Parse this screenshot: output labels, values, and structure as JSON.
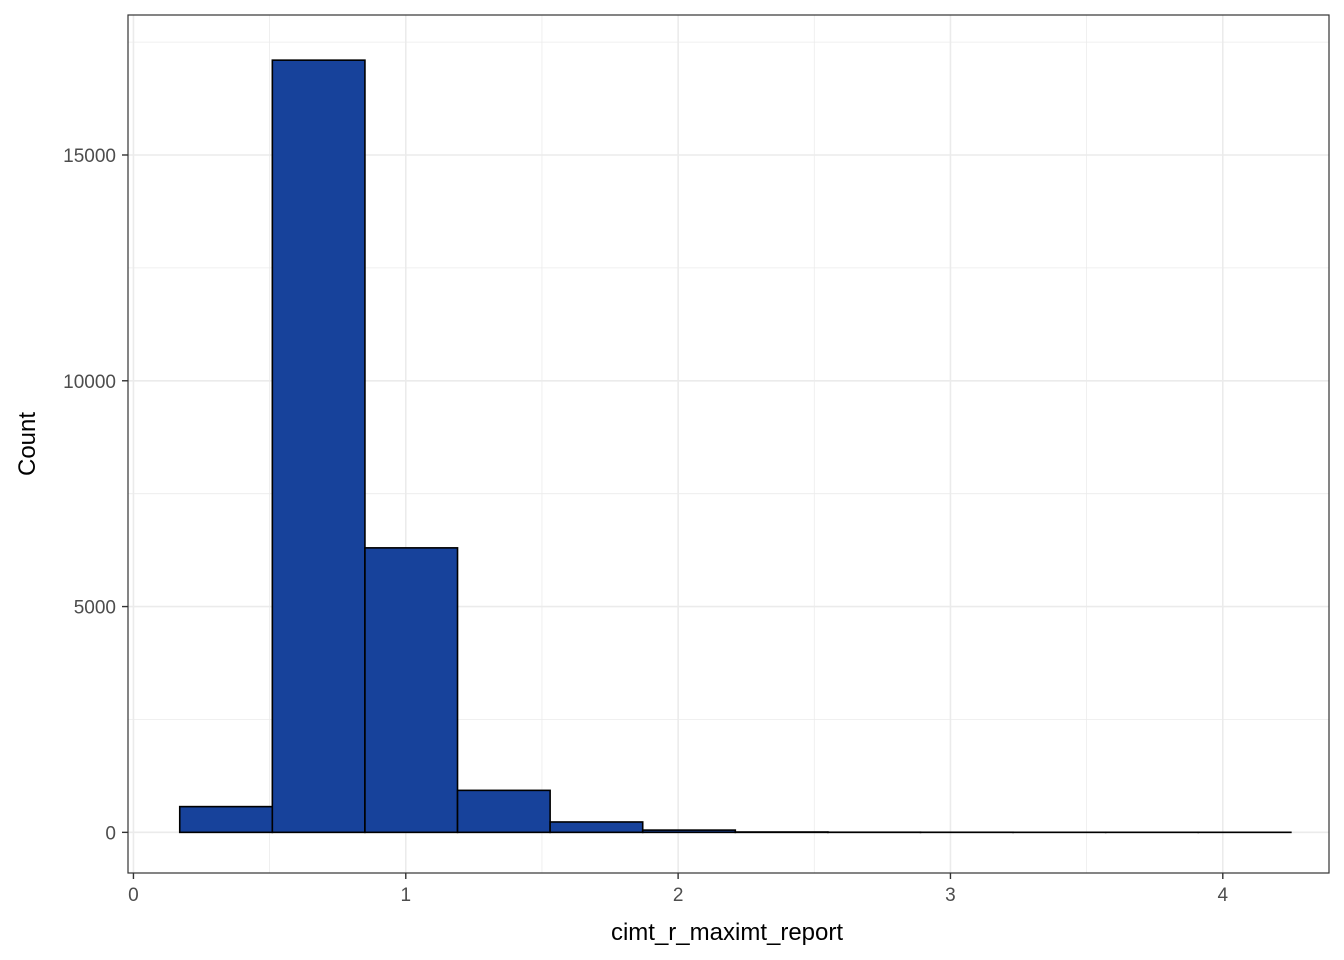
{
  "chart_data": {
    "type": "bar",
    "subtype": "histogram",
    "xlabel": "cimt_r_maximt_report",
    "ylabel": "Count",
    "xlim": [
      -0.02,
      4.39
    ],
    "ylim": [
      -900,
      18100
    ],
    "x_ticks": [
      0,
      1,
      2,
      3,
      4
    ],
    "x_tick_labels": [
      "0",
      "1",
      "2",
      "3",
      "4"
    ],
    "y_ticks": [
      0,
      5000,
      10000,
      15000
    ],
    "y_tick_labels": [
      "0",
      "5000",
      "10000",
      "15000"
    ],
    "grid": true,
    "bins": [
      {
        "x0": 0.17,
        "x1": 0.51,
        "count": 570
      },
      {
        "x0": 0.51,
        "x1": 0.85,
        "count": 17100
      },
      {
        "x0": 0.85,
        "x1": 1.19,
        "count": 6300
      },
      {
        "x0": 1.19,
        "x1": 1.53,
        "count": 930
      },
      {
        "x0": 1.53,
        "x1": 1.87,
        "count": 230
      },
      {
        "x0": 1.87,
        "x1": 2.21,
        "count": 50
      },
      {
        "x0": 2.21,
        "x1": 2.55,
        "count": 8
      },
      {
        "x0": 2.55,
        "x1": 2.89,
        "count": 3
      },
      {
        "x0": 2.89,
        "x1": 3.23,
        "count": 2
      },
      {
        "x0": 3.23,
        "x1": 3.57,
        "count": 1
      },
      {
        "x0": 3.57,
        "x1": 3.91,
        "count": 1
      },
      {
        "x0": 3.91,
        "x1": 4.25,
        "count": 1
      }
    ],
    "colors": {
      "bar_fill": "#17429B",
      "bar_stroke": "#000000",
      "grid": "#EBEBEB",
      "panel_border": "#333333"
    }
  }
}
